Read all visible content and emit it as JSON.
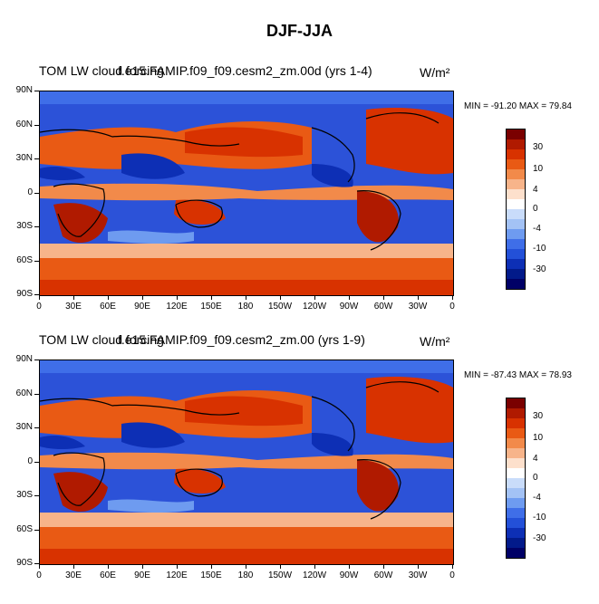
{
  "figure": {
    "title": "DJF-JJA"
  },
  "chart_data": [
    {
      "type": "heatmap",
      "title_left": "TOM LW cloud forcing",
      "title_center": "f.e15.FAMIP.f09_f09.cesm2_zm.00d (yrs 1-4)",
      "title_right": "W/m²",
      "min_label": "MIN = -91.20",
      "max_label": "MAX =  79.84",
      "stats_text": "MIN = -91.20 MAX =  79.84",
      "ylim": [
        -90,
        90
      ],
      "xlim": [
        0,
        360
      ],
      "lat_ticks": [
        "90N",
        "60N",
        "30N",
        "0",
        "30S",
        "60S",
        "90S"
      ],
      "lon_ticks": [
        "0",
        "30E",
        "60E",
        "90E",
        "120E",
        "150E",
        "180",
        "150W",
        "120W",
        "90W",
        "60W",
        "30W",
        "0"
      ],
      "colorbar_labels": [
        "30",
        "10",
        "4",
        "0",
        "-4",
        "-10",
        "-30"
      ]
    },
    {
      "type": "heatmap",
      "title_left": "TOM LW cloud forcing",
      "title_center": "f.e15.FAMIP.f09_f09.cesm2_zm.00 (yrs 1-9)",
      "title_right": "W/m²",
      "min_label": "MIN = -87.43",
      "max_label": "MAX =  78.93",
      "stats_text": "MIN = -87.43 MAX =  78.93",
      "ylim": [
        -90,
        90
      ],
      "xlim": [
        0,
        360
      ],
      "lat_ticks": [
        "90N",
        "60N",
        "30N",
        "0",
        "30S",
        "60S",
        "90S"
      ],
      "lon_ticks": [
        "0",
        "30E",
        "60E",
        "90E",
        "120E",
        "150E",
        "180",
        "150W",
        "120W",
        "90W",
        "60W",
        "30W",
        "0"
      ],
      "colorbar_labels": [
        "30",
        "10",
        "4",
        "0",
        "-4",
        "-10",
        "-30"
      ]
    }
  ],
  "colorbar_colors": [
    "#7a0000",
    "#b01a00",
    "#d83200",
    "#e95a14",
    "#f28a4a",
    "#f7b48a",
    "#fde0cc",
    "#ffffff",
    "#c9dcfa",
    "#a3c2f5",
    "#6e9bf0",
    "#3f6ee8",
    "#2350d8",
    "#0d2fb5",
    "#021a8a",
    "#000066"
  ]
}
